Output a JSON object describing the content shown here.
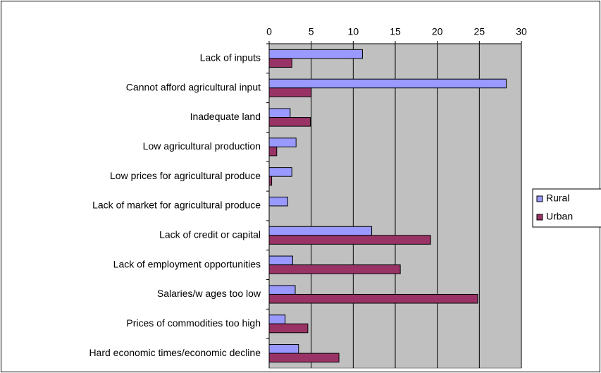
{
  "chart_data": {
    "type": "hbar",
    "categories": [
      "Lack of inputs",
      "Cannot afford agricultural input",
      "Inadequate land",
      "Low  agricultural production",
      "Low  prices for agricultural produce",
      "Lack of market for agricultural produce",
      "Lack of credit or capital",
      "Lack of employment opportunities",
      "Salaries/w ages too low",
      "Prices of commodities too high",
      "Hard economic times/economic decline"
    ],
    "series": [
      {
        "name": "Rural",
        "color": "#9999ff",
        "values": [
          11.1,
          28.2,
          2.5,
          3.2,
          2.7,
          2.2,
          12.2,
          2.8,
          3.1,
          1.9,
          3.5
        ]
      },
      {
        "name": "Urban",
        "color": "#993366",
        "values": [
          2.7,
          5.0,
          4.9,
          0.9,
          0.3,
          0,
          19.2,
          15.6,
          24.8,
          4.6,
          8.3
        ]
      }
    ],
    "xlim": [
      0,
      30
    ],
    "xticks": [
      0,
      5,
      10,
      15,
      20,
      25,
      30
    ],
    "grid": true,
    "legend": "right"
  }
}
